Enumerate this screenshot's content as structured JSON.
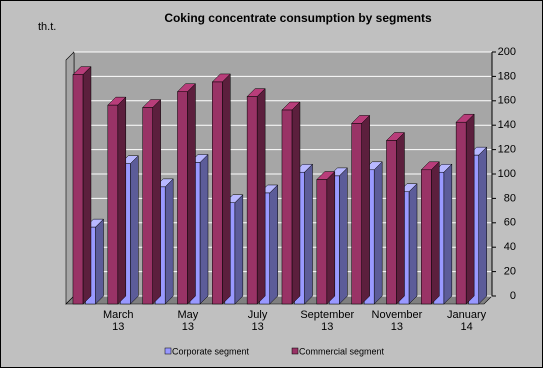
{
  "chart_data": {
    "type": "bar3d",
    "title": "Coking concentrate consumption by segments",
    "unit_label": "th.t.",
    "categories": [
      null,
      "March\n13",
      null,
      "May\n13",
      null,
      "July\n13",
      null,
      "September\n13",
      null,
      "November\n13",
      null,
      "January\n14"
    ],
    "series": [
      {
        "name": "Corporate segment",
        "color": "#9999ff",
        "values": [
          63,
          115,
          96,
          116,
          83,
          91,
          108,
          105,
          110,
          92,
          108,
          122
        ]
      },
      {
        "name": "Commercial segment",
        "color": "#993366",
        "values": [
          188,
          163,
          161,
          174,
          182,
          170,
          159,
          102,
          148,
          134,
          110,
          149
        ]
      }
    ],
    "ylim": [
      0,
      200
    ],
    "yticks": [
      0,
      20,
      40,
      60,
      80,
      100,
      120,
      140,
      160,
      180,
      200
    ],
    "grid": true
  }
}
